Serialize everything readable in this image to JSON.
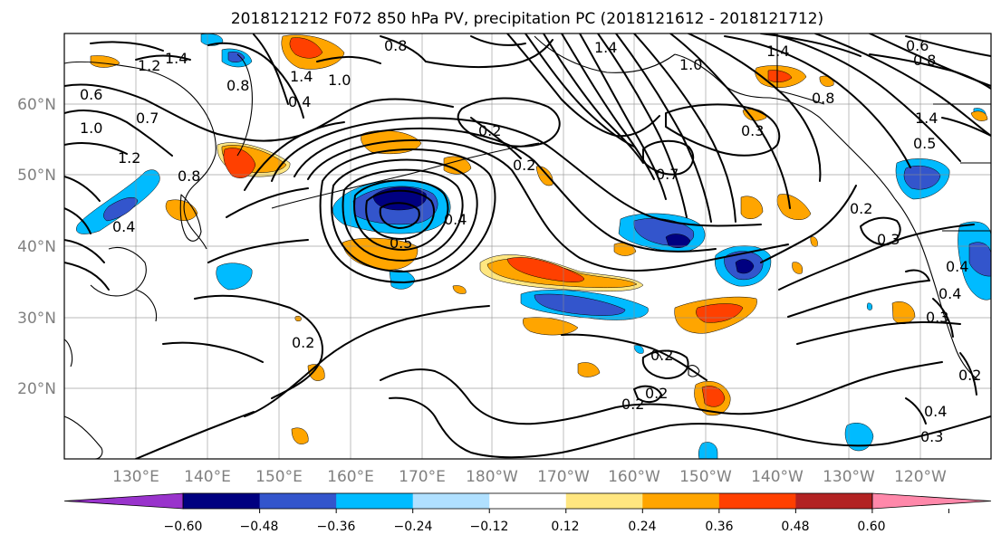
{
  "title": "2018121212 F072 850 hPa PV, precipitation PC (2018121612 - 2018121712)",
  "lon_labels": [
    "130°E",
    "140°E",
    "150°E",
    "160°E",
    "170°E",
    "180°W",
    "170°W",
    "160°W",
    "150°W",
    "140°W",
    "130°W",
    "120°W"
  ],
  "lat_labels": [
    "60°N",
    "50°N",
    "40°N",
    "30°N",
    "20°N"
  ],
  "colorbar": {
    "ticks": [
      "−0.60",
      "−0.48",
      "−0.36",
      "−0.24",
      "−0.12",
      "0.12",
      "0.24",
      "0.36",
      "0.48",
      "0.60"
    ],
    "colors": [
      "#9933cc",
      "#000080",
      "#3355cc",
      "#00bbff",
      "#b0e0ff",
      "#ffffff",
      "#ffe680",
      "#ffa500",
      "#ff4000",
      "#b22222",
      "#ff88aa"
    ]
  },
  "contour_labels": [
    "1.2",
    "1.4",
    "0.8",
    "0.6",
    "0.7",
    "1.0",
    "1.2",
    "0.8",
    "0.4",
    "0.4",
    "1.4",
    "1.0",
    "0.8",
    "1.4",
    "1.4",
    "1.0",
    "0.2",
    "0.2",
    "0.3",
    "0.7",
    "0.2",
    "0.3",
    "0.4",
    "0.5",
    "0.2",
    "0.2",
    "0.2",
    "0.2",
    "0.4",
    "0.3",
    "0.4",
    "0.3",
    "0.5",
    "0.2",
    "0.8",
    "0.4",
    "0.6",
    "0.8",
    "1.4"
  ]
}
